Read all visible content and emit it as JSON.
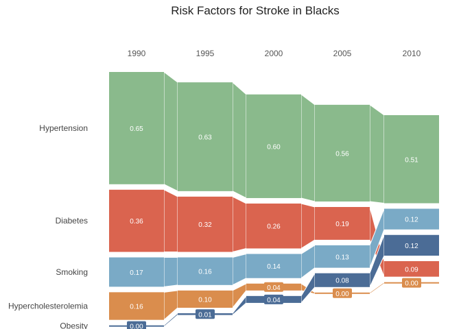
{
  "chart_data": {
    "type": "bump-stacked-bar",
    "title": "Risk Factors for Stroke in Blacks",
    "years": [
      "1990",
      "1995",
      "2000",
      "2005",
      "2010"
    ],
    "series": [
      {
        "name": "Hypertension",
        "color": "#8aba8c",
        "values": [
          0.65,
          0.63,
          0.6,
          0.56,
          0.51
        ],
        "labels": [
          "0.65",
          "0.63",
          "0.60",
          "0.56",
          "0.51"
        ]
      },
      {
        "name": "Diabetes",
        "color": "#da644f",
        "values": [
          0.36,
          0.32,
          0.26,
          0.19,
          0.09
        ],
        "labels": [
          "0.36",
          "0.32",
          "0.26",
          "0.19",
          "0.09"
        ]
      },
      {
        "name": "Smoking",
        "color": "#7aaac6",
        "values": [
          0.17,
          0.16,
          0.14,
          0.13,
          0.12
        ],
        "labels": [
          "0.17",
          "0.16",
          "0.14",
          "0.13",
          "0.12"
        ]
      },
      {
        "name": "Hypercholesterolemia",
        "color": "#da8d4d",
        "values": [
          0.16,
          0.1,
          0.04,
          0.0,
          0.0
        ],
        "labels": [
          "0.16",
          "0.10",
          "0.04",
          "0.00",
          "0.00"
        ]
      },
      {
        "name": "Obesity",
        "color": "#4b6c96",
        "values": [
          0.0,
          0.01,
          0.04,
          0.08,
          0.12
        ],
        "labels": [
          "0.00",
          "0.01",
          "0.04",
          "0.08",
          "0.12"
        ]
      }
    ],
    "rank_order_per_year": [
      [
        "Hypertension",
        "Diabetes",
        "Smoking",
        "Hypercholesterolemia",
        "Obesity"
      ],
      [
        "Hypertension",
        "Diabetes",
        "Smoking",
        "Hypercholesterolemia",
        "Obesity"
      ],
      [
        "Hypertension",
        "Diabetes",
        "Smoking",
        "Hypercholesterolemia",
        "Obesity"
      ],
      [
        "Hypertension",
        "Diabetes",
        "Smoking",
        "Obesity",
        "Hypercholesterolemia"
      ],
      [
        "Hypertension",
        "Smoking",
        "Obesity",
        "Diabetes",
        "Hypercholesterolemia"
      ]
    ],
    "grid": false,
    "legend": "none"
  }
}
